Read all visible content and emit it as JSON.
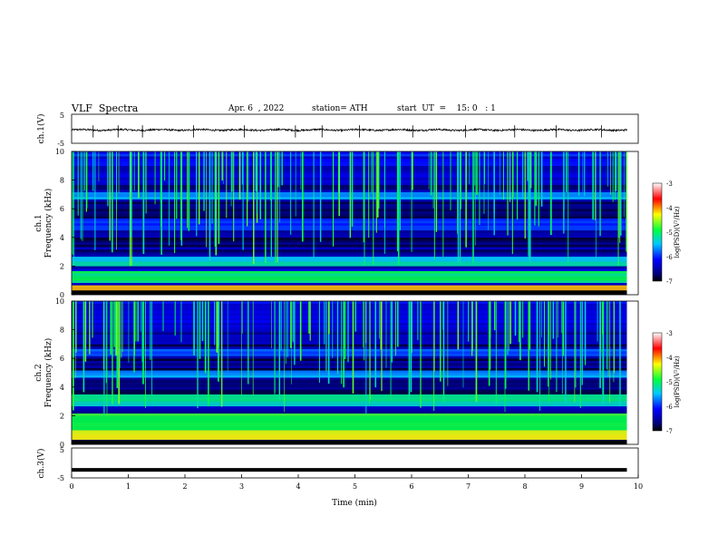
{
  "header": {
    "title": "VLF  Spectra",
    "date": "Apr. 6  , 2022",
    "station": "station= ATH",
    "start": "start  UT  =    15: 0   : 1"
  },
  "chart_data": [
    {
      "type": "line",
      "name": "ch1-waveform",
      "ylabel": "ch.1(V)",
      "yticks": [
        "5",
        "-5"
      ],
      "ylim": [
        -5,
        5
      ],
      "xlim": [
        0,
        10
      ],
      "baseline_v": -0.4,
      "noise_amplitude_v": 0.6,
      "spike_times_min": [
        0.38,
        0.82,
        1.25,
        2.15,
        3.05,
        3.95,
        4.42,
        5.08,
        6.02,
        6.95,
        7.82,
        8.55,
        9.35
      ],
      "x_end_min": 9.8
    },
    {
      "type": "heatmap",
      "name": "ch1-spectrogram",
      "ylabel": "ch.1\nFrequency (kHz)",
      "ylabel_line1": "ch.1",
      "ylabel_line2": "Frequency (kHz)",
      "ylim": [
        0,
        10
      ],
      "yticks": [
        "0",
        "2",
        "4",
        "6",
        "8",
        "10"
      ],
      "xlim": [
        0,
        10
      ],
      "x_end_min": 9.8,
      "colorbar": {
        "label": "log(PSD)(V²/Hz)",
        "ticks": [
          "-3",
          "-4",
          "-5",
          "-6",
          "-7"
        ],
        "range": [
          -7,
          -3
        ]
      },
      "bands_khz": [
        [
          0.2,
          0.5,
          -4.2
        ],
        [
          0.8,
          1.6,
          -5.0
        ],
        [
          2.0,
          2.5,
          -5.3
        ],
        [
          4.5,
          5.2,
          -5.9
        ],
        [
          6.7,
          7.0,
          -5.6
        ]
      ]
    },
    {
      "type": "heatmap",
      "name": "ch2-spectrogram",
      "ylabel": "ch.2\nFrequency (kHz)",
      "ylabel_line1": "ch.2",
      "ylabel_line2": "Frequency (kHz)",
      "ylim": [
        0,
        10
      ],
      "yticks": [
        "0",
        "2",
        "4",
        "6",
        "8",
        "10"
      ],
      "xlim": [
        0,
        10
      ],
      "x_end_min": 9.8,
      "colorbar": {
        "label": "log(PSD)(V²/Hz)",
        "ticks": [
          "-3",
          "-4",
          "-5",
          "-6",
          "-7"
        ],
        "range": [
          -7,
          -3
        ]
      },
      "bands_khz": [
        [
          0.3,
          0.9,
          -4.3
        ],
        [
          1.0,
          2.0,
          -4.8
        ],
        [
          2.6,
          3.4,
          -5.2
        ],
        [
          4.6,
          5.0,
          -5.6
        ],
        [
          6.2,
          6.6,
          -5.8
        ]
      ]
    },
    {
      "type": "line",
      "name": "ch3-waveform",
      "ylabel": "ch.3(V)",
      "yticks": [
        "5",
        "-5"
      ],
      "ylim": [
        -5,
        5
      ],
      "xlim": [
        0,
        10
      ],
      "baseline_v": -2.3,
      "x_end_min": 9.8,
      "xlabel": "Time  (min)",
      "xticks": [
        "0",
        "1",
        "2",
        "3",
        "4",
        "5",
        "6",
        "7",
        "8",
        "9",
        "10"
      ]
    }
  ]
}
